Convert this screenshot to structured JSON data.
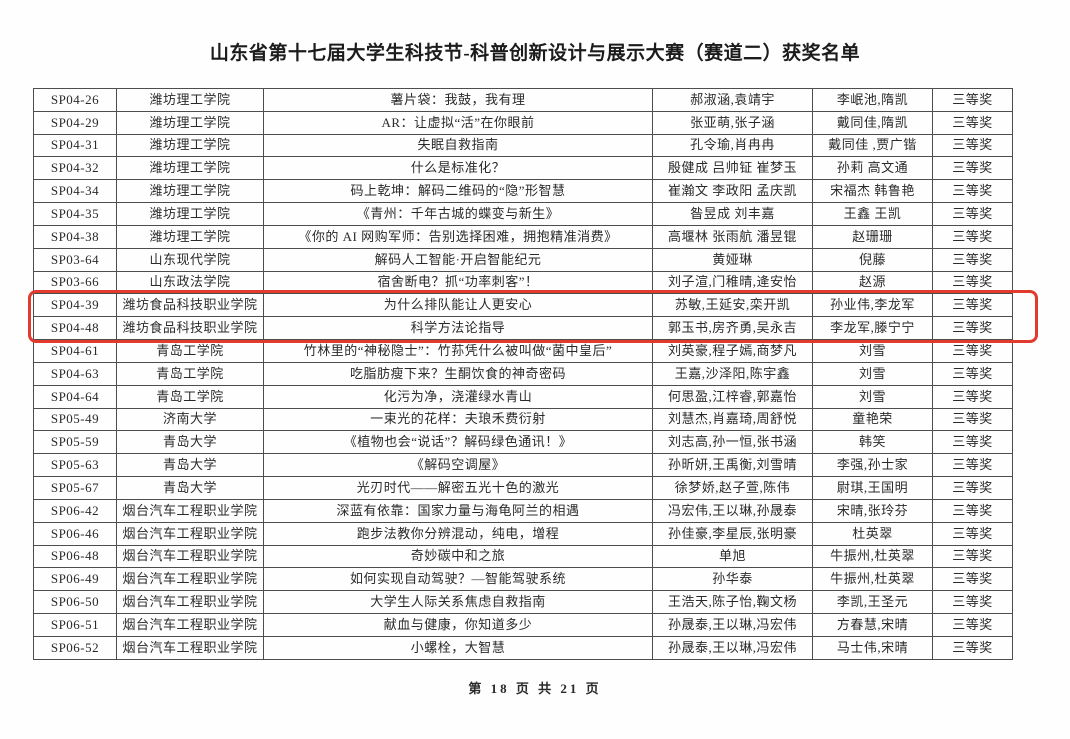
{
  "page": {
    "title": "山东省第十七届大学生科技节-科普创新设计与展示大赛（赛道二）获奖名单",
    "footer": "第 18 页 共 21 页"
  },
  "colors": {
    "highlight_box": "#e23b2e",
    "table_border": "#4d4d4d",
    "text": "#222222"
  },
  "table": {
    "rows": [
      {
        "id": "SP04-26",
        "school": "潍坊理工学院",
        "title": "薯片袋：我鼓，我有理",
        "students": "郝淑涵,袁靖宇",
        "advisors": "李岷池,隋凯",
        "award": "三等奖",
        "highlighted": false
      },
      {
        "id": "SP04-29",
        "school": "潍坊理工学院",
        "title": "AR：让虚拟“活”在你眼前",
        "students": "张亚萌,张子涵",
        "advisors": "戴同佳,隋凯",
        "award": "三等奖",
        "highlighted": false
      },
      {
        "id": "SP04-31",
        "school": "潍坊理工学院",
        "title": "失眠自救指南",
        "students": "孔令瑜,肖冉冉",
        "advisors": "戴同佳 ,贾广锴",
        "award": "三等奖",
        "highlighted": false
      },
      {
        "id": "SP04-32",
        "school": "潍坊理工学院",
        "title": "什么是标准化？",
        "students": "殷健成 吕帅钲 崔梦玉",
        "advisors": "孙莉 高文通",
        "award": "三等奖",
        "highlighted": false
      },
      {
        "id": "SP04-34",
        "school": "潍坊理工学院",
        "title": "码上乾坤：解码二维码的“隐”形智慧",
        "students": "崔瀚文 李政阳 孟庆凯",
        "advisors": "宋福杰 韩鲁艳",
        "award": "三等奖",
        "highlighted": false
      },
      {
        "id": "SP04-35",
        "school": "潍坊理工学院",
        "title": "《青州：千年古城的蝶变与新生》",
        "students": "昝昱成 刘丰嘉",
        "advisors": "王鑫 王凯",
        "award": "三等奖",
        "highlighted": false
      },
      {
        "id": "SP04-38",
        "school": "潍坊理工学院",
        "title": "《你的 AI 网购军师：告别选择困难，拥抱精准消费》",
        "students": "高堰林 张雨航 潘昱锟",
        "advisors": "赵珊珊",
        "award": "三等奖",
        "highlighted": false
      },
      {
        "id": "SP03-64",
        "school": "山东现代学院",
        "title": "解码人工智能·开启智能纪元",
        "students": "黄娅琳",
        "advisors": "倪藤",
        "award": "三等奖",
        "highlighted": false
      },
      {
        "id": "SP03-66",
        "school": "山东政法学院",
        "title": "宿舍断电？抓“功率刺客”！",
        "students": "刘子渲,门稚晴,逄安怡",
        "advisors": "赵源",
        "award": "三等奖",
        "highlighted": false
      },
      {
        "id": "SP04-39",
        "school": "潍坊食品科技职业学院",
        "title": "为什么排队能让人更安心",
        "students": "苏敏,王延安,栾开凯",
        "advisors": "孙业伟,李龙军",
        "award": "三等奖",
        "highlighted": true
      },
      {
        "id": "SP04-48",
        "school": "潍坊食品科技职业学院",
        "title": "科学方法论指导",
        "students": "郭玉书,房齐勇,吴永吉",
        "advisors": "李龙军,滕宁宁",
        "award": "三等奖",
        "highlighted": true
      },
      {
        "id": "SP04-61",
        "school": "青岛工学院",
        "title": "竹林里的“神秘隐士”：竹荪凭什么被叫做“菌中皇后”",
        "students": "刘英豪,程子嫣,商梦凡",
        "advisors": "刘雪",
        "award": "三等奖",
        "highlighted": false
      },
      {
        "id": "SP04-63",
        "school": "青岛工学院",
        "title": "吃脂肪瘦下来？生酮饮食的神奇密码",
        "students": "王嘉,沙泽阳,陈宇鑫",
        "advisors": "刘雪",
        "award": "三等奖",
        "highlighted": false
      },
      {
        "id": "SP04-64",
        "school": "青岛工学院",
        "title": "化污为净，浇灌绿水青山",
        "students": "何思盈,江梓睿,郭嘉怡",
        "advisors": "刘雪",
        "award": "三等奖",
        "highlighted": false
      },
      {
        "id": "SP05-49",
        "school": "济南大学",
        "title": "一束光的花样：夫琅禾费衍射",
        "students": "刘慧杰,肖嘉琦,周舒悦",
        "advisors": "童艳荣",
        "award": "三等奖",
        "highlighted": false
      },
      {
        "id": "SP05-59",
        "school": "青岛大学",
        "title": "《植物也会“说话”？解码绿色通讯！》",
        "students": "刘志高,孙一恒,张书涵",
        "advisors": "韩笑",
        "award": "三等奖",
        "highlighted": false
      },
      {
        "id": "SP05-63",
        "school": "青岛大学",
        "title": "《解码空调屋》",
        "students": "孙昕妍,王禹衡,刘雪晴",
        "advisors": "李强,孙士家",
        "award": "三等奖",
        "highlighted": false
      },
      {
        "id": "SP05-67",
        "school": "青岛大学",
        "title": "光刃时代——解密五光十色的激光",
        "students": "徐梦娇,赵子萱,陈伟",
        "advisors": "尉琪,王国明",
        "award": "三等奖",
        "highlighted": false
      },
      {
        "id": "SP06-42",
        "school": "烟台汽车工程职业学院",
        "title": "深蓝有依靠：国家力量与海龟阿兰的相遇",
        "students": "冯宏伟,王以琳,孙晟泰",
        "advisors": "宋晴,张玲芬",
        "award": "三等奖",
        "highlighted": false
      },
      {
        "id": "SP06-46",
        "school": "烟台汽车工程职业学院",
        "title": "跑步法教你分辨混动，纯电，增程",
        "students": "孙佳豪,李星辰,张明豪",
        "advisors": "杜英翠",
        "award": "三等奖",
        "highlighted": false
      },
      {
        "id": "SP06-48",
        "school": "烟台汽车工程职业学院",
        "title": "奇妙碳中和之旅",
        "students": "单旭",
        "advisors": "牛振州,杜英翠",
        "award": "三等奖",
        "highlighted": false
      },
      {
        "id": "SP06-49",
        "school": "烟台汽车工程职业学院",
        "title": "如何实现自动驾驶？—智能驾驶系统",
        "students": "孙华泰",
        "advisors": "牛振州,杜英翠",
        "award": "三等奖",
        "highlighted": false
      },
      {
        "id": "SP06-50",
        "school": "烟台汽车工程职业学院",
        "title": "大学生人际关系焦虑自救指南",
        "students": "王浩天,陈子怡,鞠文杨",
        "advisors": "李凯,王圣元",
        "award": "三等奖",
        "highlighted": false
      },
      {
        "id": "SP06-51",
        "school": "烟台汽车工程职业学院",
        "title": "献血与健康，你知道多少",
        "students": "孙晟泰,王以琳,冯宏伟",
        "advisors": "方春慧,宋晴",
        "award": "三等奖",
        "highlighted": false
      },
      {
        "id": "SP06-52",
        "school": "烟台汽车工程职业学院",
        "title": "小螺栓，大智慧",
        "students": "孙晟泰,王以琳,冯宏伟",
        "advisors": "马士伟,宋晴",
        "award": "三等奖",
        "highlighted": false
      }
    ]
  }
}
